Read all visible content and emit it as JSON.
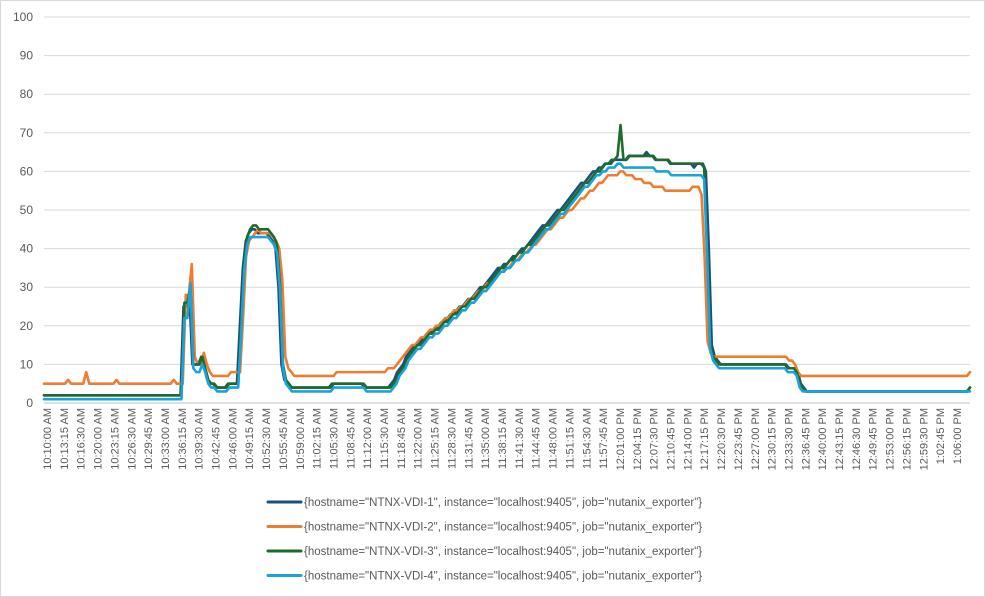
{
  "chart_data": {
    "type": "line",
    "title": "",
    "xlabel": "",
    "ylabel": "",
    "ylim": [
      0,
      100
    ],
    "yticks": [
      0,
      10,
      20,
      30,
      40,
      50,
      60,
      70,
      80,
      90,
      100
    ],
    "grid": true,
    "legend_position": "bottom",
    "x_tick_labels": [
      "10:10:00 AM",
      "10:13:15 AM",
      "10:16:30 AM",
      "10:20:00 AM",
      "10:23:15 AM",
      "10:26:30 AM",
      "10:29:45 AM",
      "10:33:00 AM",
      "10:36:15 AM",
      "10:39:30 AM",
      "10:42:45 AM",
      "10:46:00 AM",
      "10:49:15 AM",
      "10:52:30 AM",
      "10:55:45 AM",
      "10:59:00 AM",
      "11:02:15 AM",
      "11:05:30 AM",
      "11:08:45 AM",
      "11:12:00 AM",
      "11:15:30 AM",
      "11:18:45 AM",
      "11:22:00 AM",
      "11:25:15 AM",
      "11:28:30 AM",
      "11:31:45 AM",
      "11:35:00 AM",
      "11:38:15 AM",
      "11:41:30 AM",
      "11:44:45 AM",
      "11:48:00 AM",
      "11:51:15 AM",
      "11:54:30 AM",
      "11:57:45 AM",
      "12:01:00 PM",
      "12:04:15 PM",
      "12:07:30 PM",
      "12:10:45 PM",
      "12:14:00 PM",
      "12:17:15 PM",
      "12:20:30 PM",
      "12:23:45 PM",
      "12:27:00 PM",
      "12:30:15 PM",
      "12:33:30 PM",
      "12:36:45 PM",
      "12:40:00 PM",
      "12:43:15 PM",
      "12:46:30 PM",
      "12:49:45 PM",
      "12:53:00 PM",
      "12:56:15 PM",
      "12:59:30 PM",
      "1:02:45 PM",
      "1:06:00 PM"
    ],
    "series": [
      {
        "name": "{hostname=\"NTNX-VDI-1\", instance=\"localhost:9405\", job=\"nutanix_exporter\"}",
        "color": "#1f4e79",
        "values": [
          2,
          2,
          2,
          2,
          2,
          2,
          2,
          2,
          2,
          2,
          2,
          2,
          2,
          2,
          2,
          2,
          2,
          2,
          2,
          2,
          2,
          2,
          2,
          2,
          2,
          2,
          2,
          2,
          2,
          2,
          2,
          2,
          2,
          2,
          2,
          2,
          2,
          2,
          2,
          2,
          2,
          2,
          2,
          2,
          2,
          2,
          2,
          25,
          25,
          28,
          10,
          10,
          10,
          12,
          9,
          6,
          5,
          5,
          4,
          4,
          4,
          4,
          5,
          5,
          5,
          5,
          20,
          35,
          42,
          44,
          45,
          45,
          44,
          44,
          44,
          44,
          43,
          42,
          40,
          30,
          10,
          6,
          5,
          4,
          4,
          4,
          4,
          4,
          4,
          4,
          4,
          4,
          4,
          4,
          4,
          4,
          4,
          5,
          5,
          5,
          5,
          5,
          5,
          5,
          5,
          5,
          5,
          5,
          4,
          4,
          4,
          4,
          4,
          4,
          4,
          4,
          4,
          5,
          6,
          8,
          9,
          10,
          12,
          13,
          14,
          15,
          15,
          16,
          17,
          18,
          18,
          19,
          19,
          20,
          21,
          21,
          22,
          23,
          23,
          24,
          25,
          25,
          26,
          27,
          27,
          28,
          29,
          30,
          30,
          31,
          32,
          33,
          34,
          35,
          35,
          36,
          36,
          37,
          38,
          38,
          39,
          40,
          40,
          41,
          42,
          43,
          44,
          45,
          46,
          46,
          47,
          48,
          49,
          50,
          50,
          51,
          52,
          53,
          54,
          55,
          56,
          57,
          57,
          58,
          59,
          60,
          60,
          61,
          61,
          62,
          62,
          62,
          63,
          63,
          63,
          63,
          63,
          64,
          64,
          64,
          64,
          64,
          64,
          65,
          64,
          64,
          63,
          63,
          63,
          63,
          63,
          62,
          62,
          62,
          62,
          62,
          62,
          62,
          62,
          61,
          62,
          62,
          62,
          60,
          40,
          15,
          12,
          11,
          10,
          10,
          10,
          10,
          10,
          10,
          10,
          10,
          10,
          10,
          10,
          10,
          10,
          10,
          10,
          10,
          10,
          10,
          10,
          10,
          10,
          10,
          10,
          9,
          9,
          9,
          8,
          5,
          4,
          3,
          3,
          3,
          3,
          3,
          3,
          3,
          3,
          3,
          3,
          3,
          3,
          3,
          3,
          3,
          3,
          3,
          3,
          3,
          3,
          3,
          3,
          3,
          3,
          3,
          3,
          3,
          3,
          3,
          3,
          3,
          3,
          3,
          3,
          3,
          3,
          3,
          3,
          3,
          3,
          3,
          3,
          3,
          3,
          3,
          3,
          3,
          3,
          3,
          3,
          3,
          3,
          3,
          3,
          3,
          4
        ]
      },
      {
        "name": "{hostname=\"NTNX-VDI-2\", instance=\"localhost:9405\", job=\"nutanix_exporter\"}",
        "color": "#ed7d31",
        "values": [
          5,
          5,
          5,
          5,
          5,
          5,
          5,
          5,
          6,
          5,
          5,
          5,
          5,
          5,
          8,
          5,
          5,
          5,
          5,
          5,
          5,
          5,
          5,
          5,
          6,
          5,
          5,
          5,
          5,
          5,
          5,
          5,
          5,
          5,
          5,
          5,
          5,
          5,
          5,
          5,
          5,
          5,
          5,
          6,
          5,
          5,
          5,
          28,
          28,
          36,
          12,
          10,
          10,
          13,
          10,
          8,
          7,
          7,
          7,
          7,
          7,
          7,
          8,
          8,
          8,
          8,
          22,
          38,
          42,
          43,
          44,
          45,
          44,
          44,
          44,
          44,
          43,
          42,
          40,
          32,
          12,
          9,
          8,
          7,
          7,
          7,
          7,
          7,
          7,
          7,
          7,
          7,
          7,
          7,
          7,
          7,
          7,
          8,
          8,
          8,
          8,
          8,
          8,
          8,
          8,
          8,
          8,
          8,
          8,
          8,
          8,
          8,
          8,
          8,
          9,
          9,
          9,
          10,
          11,
          12,
          13,
          14,
          15,
          15,
          16,
          17,
          17,
          18,
          19,
          19,
          20,
          20,
          21,
          22,
          22,
          23,
          24,
          24,
          25,
          25,
          26,
          27,
          27,
          28,
          29,
          29,
          30,
          31,
          31,
          32,
          33,
          34,
          34,
          35,
          35,
          36,
          37,
          37,
          38,
          39,
          39,
          40,
          41,
          41,
          42,
          43,
          44,
          45,
          45,
          46,
          47,
          48,
          48,
          49,
          50,
          50,
          51,
          52,
          53,
          53,
          54,
          55,
          55,
          56,
          57,
          57,
          58,
          59,
          59,
          59,
          59,
          60,
          60,
          59,
          59,
          59,
          58,
          58,
          58,
          57,
          57,
          57,
          56,
          56,
          56,
          56,
          55,
          55,
          55,
          55,
          55,
          55,
          55,
          55,
          55,
          56,
          56,
          56,
          54,
          38,
          16,
          13,
          12,
          12,
          12,
          12,
          12,
          12,
          12,
          12,
          12,
          12,
          12,
          12,
          12,
          12,
          12,
          12,
          12,
          12,
          12,
          12,
          12,
          12,
          12,
          12,
          12,
          11,
          11,
          10,
          8,
          7,
          7,
          7,
          7,
          7,
          7,
          7,
          7,
          7,
          7,
          7,
          7,
          7,
          7,
          7,
          7,
          7,
          7,
          7,
          7,
          7,
          7,
          7,
          7,
          7,
          7,
          7,
          7,
          7,
          7,
          7,
          7,
          7,
          7,
          7,
          7,
          7,
          7,
          7,
          7,
          7,
          7,
          7,
          7,
          7,
          7,
          7,
          7,
          7,
          7,
          7,
          7,
          7,
          7,
          7,
          7,
          8
        ]
      },
      {
        "name": "{hostname=\"NTNX-VDI-3\", instance=\"localhost:9405\", job=\"nutanix_exporter\"}",
        "color": "#1e6b2e",
        "values": [
          2,
          2,
          2,
          2,
          2,
          2,
          2,
          2,
          2,
          2,
          2,
          2,
          2,
          2,
          2,
          2,
          2,
          2,
          2,
          2,
          2,
          2,
          2,
          2,
          2,
          2,
          2,
          2,
          2,
          2,
          2,
          2,
          2,
          2,
          2,
          2,
          2,
          2,
          2,
          2,
          2,
          2,
          2,
          2,
          2,
          2,
          2,
          26,
          26,
          30,
          10,
          10,
          10,
          12,
          9,
          6,
          5,
          5,
          4,
          4,
          4,
          4,
          5,
          5,
          5,
          5,
          20,
          36,
          43,
          45,
          46,
          46,
          45,
          45,
          45,
          45,
          44,
          43,
          41,
          31,
          10,
          6,
          5,
          4,
          4,
          4,
          4,
          4,
          4,
          4,
          4,
          4,
          4,
          4,
          4,
          4,
          4,
          5,
          5,
          5,
          5,
          5,
          5,
          5,
          5,
          5,
          5,
          5,
          4,
          4,
          4,
          4,
          4,
          4,
          4,
          4,
          4,
          5,
          6,
          8,
          9,
          10,
          12,
          13,
          14,
          15,
          15,
          16,
          17,
          18,
          18,
          19,
          19,
          20,
          21,
          21,
          22,
          23,
          23,
          24,
          25,
          25,
          26,
          27,
          27,
          28,
          29,
          30,
          30,
          31,
          32,
          33,
          34,
          35,
          35,
          36,
          37,
          37,
          38,
          39,
          39,
          40,
          41,
          41,
          42,
          43,
          44,
          45,
          46,
          46,
          47,
          48,
          49,
          50,
          50,
          51,
          52,
          53,
          54,
          55,
          56,
          57,
          57,
          58,
          59,
          60,
          60,
          61,
          62,
          62,
          63,
          63,
          64,
          72,
          63,
          63,
          64,
          64,
          64,
          64,
          64,
          64,
          64,
          64,
          64,
          63,
          63,
          63,
          63,
          63,
          62,
          62,
          62,
          62,
          62,
          62,
          62,
          62,
          62,
          62,
          62,
          61,
          40,
          15,
          12,
          11,
          10,
          10,
          10,
          10,
          10,
          10,
          10,
          10,
          10,
          10,
          10,
          10,
          10,
          10,
          10,
          10,
          10,
          10,
          10,
          10,
          10,
          10,
          10,
          9,
          9,
          9,
          8,
          5,
          4,
          3,
          3,
          3,
          3,
          3,
          3,
          3,
          3,
          3,
          3,
          3,
          3,
          3,
          3,
          3,
          3,
          3,
          3,
          3,
          3,
          3,
          3,
          3,
          3,
          3,
          3,
          3,
          3,
          3,
          3,
          3,
          3,
          3,
          3,
          3,
          3,
          3,
          3,
          3,
          3,
          3,
          3,
          3,
          3,
          3,
          3,
          3,
          3,
          3,
          3,
          3,
          3,
          3,
          3,
          3,
          4
        ]
      },
      {
        "name": "{hostname=\"NTNX-VDI-4\", instance=\"localhost:9405\", job=\"nutanix_exporter\"}",
        "color": "#1aa3d9",
        "values": [
          1,
          1,
          1,
          1,
          1,
          1,
          1,
          1,
          1,
          1,
          1,
          1,
          1,
          1,
          1,
          1,
          1,
          1,
          1,
          1,
          1,
          1,
          1,
          1,
          1,
          1,
          1,
          1,
          1,
          1,
          1,
          1,
          1,
          1,
          1,
          1,
          1,
          1,
          1,
          1,
          1,
          1,
          1,
          1,
          1,
          1,
          1,
          22,
          22,
          31,
          9,
          8,
          8,
          10,
          8,
          5,
          4,
          4,
          3,
          3,
          3,
          3,
          4,
          4,
          4,
          4,
          18,
          34,
          41,
          43,
          43,
          43,
          43,
          43,
          43,
          43,
          42,
          41,
          39,
          29,
          9,
          5,
          4,
          3,
          3,
          3,
          3,
          3,
          3,
          3,
          3,
          3,
          3,
          3,
          3,
          3,
          3,
          4,
          4,
          4,
          4,
          4,
          4,
          4,
          4,
          4,
          4,
          4,
          3,
          3,
          3,
          3,
          3,
          3,
          3,
          3,
          3,
          4,
          5,
          7,
          8,
          9,
          11,
          12,
          13,
          14,
          14,
          15,
          16,
          17,
          17,
          18,
          18,
          19,
          20,
          20,
          21,
          22,
          22,
          23,
          24,
          24,
          25,
          26,
          26,
          27,
          28,
          29,
          29,
          30,
          31,
          32,
          33,
          34,
          34,
          35,
          35,
          36,
          37,
          37,
          38,
          39,
          39,
          40,
          41,
          42,
          43,
          44,
          45,
          45,
          46,
          47,
          48,
          49,
          49,
          50,
          51,
          52,
          53,
          54,
          55,
          56,
          56,
          57,
          58,
          59,
          59,
          60,
          60,
          61,
          61,
          61,
          62,
          62,
          61,
          61,
          61,
          61,
          61,
          61,
          61,
          61,
          61,
          61,
          61,
          60,
          60,
          60,
          60,
          60,
          59,
          59,
          59,
          59,
          59,
          59,
          59,
          59,
          59,
          59,
          59,
          58,
          38,
          14,
          11,
          10,
          9,
          9,
          9,
          9,
          9,
          9,
          9,
          9,
          9,
          9,
          9,
          9,
          9,
          9,
          9,
          9,
          9,
          9,
          9,
          9,
          9,
          9,
          9,
          8,
          8,
          8,
          7,
          4,
          3,
          3,
          3,
          3,
          3,
          3,
          3,
          3,
          3,
          3,
          3,
          3,
          3,
          3,
          3,
          3,
          3,
          3,
          3,
          3,
          3,
          3,
          3,
          3,
          3,
          3,
          3,
          3,
          3,
          3,
          3,
          3,
          3,
          3,
          3,
          3,
          3,
          3,
          3,
          3,
          3,
          3,
          3,
          3,
          3,
          3,
          3,
          3,
          3,
          3,
          3,
          3,
          3,
          3,
          3,
          3,
          3
        ]
      }
    ]
  }
}
